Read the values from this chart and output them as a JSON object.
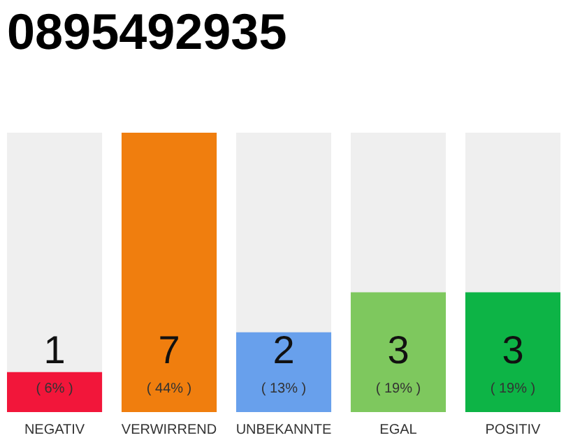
{
  "chart_data": {
    "type": "bar",
    "title": "0895492935",
    "categories": [
      "NEGATIV",
      "VERWIRREND",
      "UNBEKANNTE",
      "EGAL",
      "POSITIV"
    ],
    "values": [
      1,
      7,
      2,
      3,
      3
    ],
    "colors": [
      "#f2163a",
      "#f07e0e",
      "#68a0ec",
      "#7ec85e",
      "#0db446"
    ],
    "ylim": [
      0,
      7
    ],
    "tick_labels": "x",
    "data_labels": true,
    "annotations": [
      "( 6% )",
      "( 44% )",
      "( 13% )",
      "( 19% )",
      "( 19% )"
    ]
  }
}
